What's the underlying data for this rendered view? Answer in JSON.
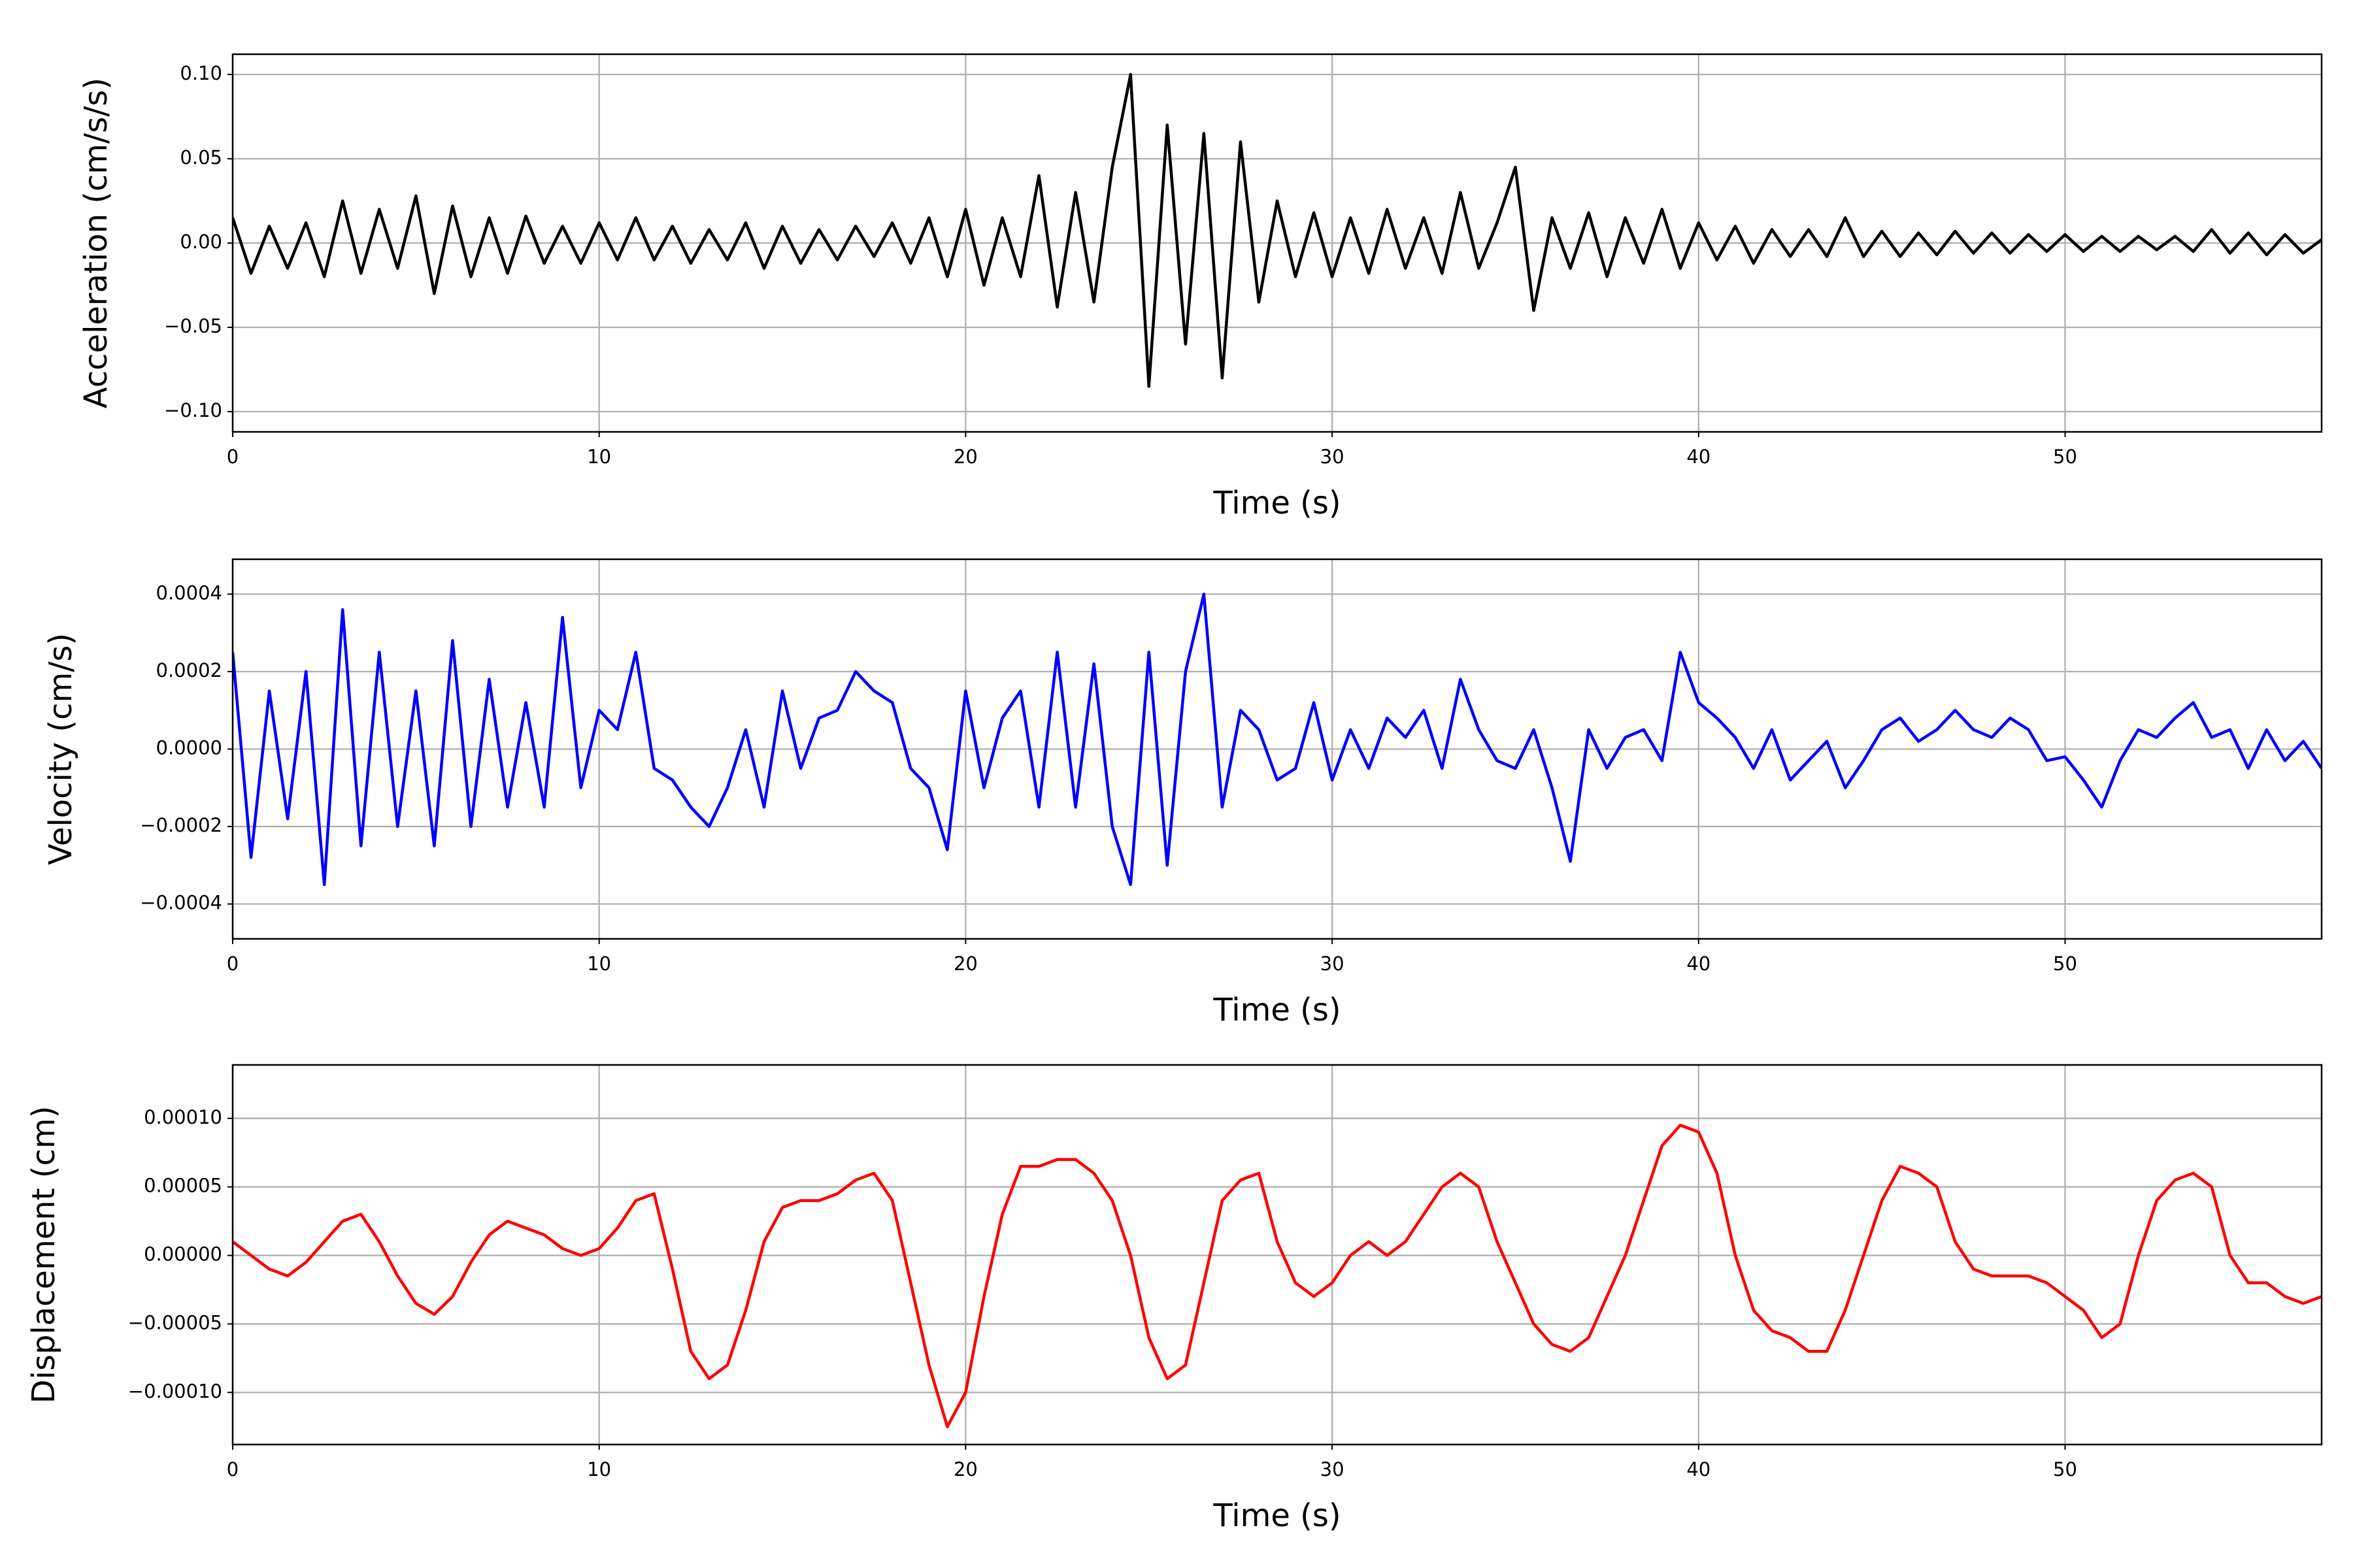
{
  "chart_data": [
    {
      "type": "line",
      "xlabel": "Time (s)",
      "ylabel": "Acceleration (cm/s/s)",
      "color": "#000000",
      "grid": true,
      "xlim": [
        0,
        57
      ],
      "xticks": [
        0,
        10,
        20,
        30,
        40,
        50
      ],
      "ylim": [
        -0.112,
        0.112
      ],
      "yticks": [
        {
          "value": -0.1,
          "label": "−0.10"
        },
        {
          "value": -0.05,
          "label": "−0.05"
        },
        {
          "value": 0,
          "label": "0.00"
        },
        0.05,
        {
          "value": 0.1,
          "label": "0.10"
        }
      ],
      "x": [
        0,
        0.5,
        1,
        1.5,
        2,
        2.5,
        3,
        3.5,
        4,
        4.5,
        5,
        5.5,
        6,
        6.5,
        7,
        7.5,
        8,
        8.5,
        9,
        9.5,
        10,
        10.5,
        11,
        11.5,
        12,
        12.5,
        13,
        13.5,
        14,
        14.5,
        15,
        15.5,
        16,
        16.5,
        17,
        17.5,
        18,
        18.5,
        19,
        19.5,
        20,
        20.5,
        21,
        21.5,
        22,
        22.5,
        23,
        23.5,
        24,
        24.5,
        25,
        25.5,
        26,
        26.5,
        27,
        27.5,
        28,
        28.5,
        29,
        29.5,
        30,
        30.5,
        31,
        31.5,
        32,
        32.5,
        33,
        33.5,
        34,
        34.5,
        35,
        35.5,
        36,
        36.5,
        37,
        37.5,
        38,
        38.5,
        39,
        39.5,
        40,
        40.5,
        41,
        41.5,
        42,
        42.5,
        43,
        43.5,
        44,
        44.5,
        45,
        45.5,
        46,
        46.5,
        47,
        47.5,
        48,
        48.5,
        49,
        49.5,
        50,
        50.5,
        51,
        51.5,
        52,
        52.5,
        53,
        53.5,
        54,
        54.5,
        55,
        55.5,
        56,
        56.5,
        57
      ],
      "values": [
        0.015,
        -0.018,
        0.01,
        -0.015,
        0.012,
        -0.02,
        0.025,
        -0.018,
        0.02,
        -0.015,
        0.028,
        -0.03,
        0.022,
        -0.02,
        0.015,
        -0.018,
        0.016,
        -0.012,
        0.01,
        -0.012,
        0.012,
        -0.01,
        0.015,
        -0.01,
        0.01,
        -0.012,
        0.008,
        -0.01,
        0.012,
        -0.015,
        0.01,
        -0.012,
        0.008,
        -0.01,
        0.01,
        -0.008,
        0.012,
        -0.012,
        0.015,
        -0.02,
        0.02,
        -0.025,
        0.015,
        -0.02,
        0.04,
        -0.038,
        0.03,
        -0.035,
        0.045,
        0.1,
        -0.085,
        0.07,
        -0.06,
        0.065,
        -0.08,
        0.06,
        -0.035,
        0.025,
        -0.02,
        0.018,
        -0.02,
        0.015,
        -0.018,
        0.02,
        -0.015,
        0.015,
        -0.018,
        0.03,
        -0.015,
        0.012,
        0.045,
        -0.04,
        0.015,
        -0.015,
        0.018,
        -0.02,
        0.015,
        -0.012,
        0.02,
        -0.015,
        0.012,
        -0.01,
        0.01,
        -0.012,
        0.008,
        -0.008,
        0.008,
        -0.008,
        0.015,
        -0.008,
        0.007,
        -0.008,
        0.006,
        -0.007,
        0.007,
        -0.006,
        0.006,
        -0.006,
        0.005,
        -0.005,
        0.005,
        -0.005,
        0.004,
        -0.005,
        0.004,
        -0.004,
        0.004,
        -0.005,
        0.008,
        -0.006,
        0.006,
        -0.007,
        0.005,
        -0.006,
        0.002
      ]
    },
    {
      "type": "line",
      "xlabel": "Time (s)",
      "ylabel": "Velocity (cm/s)",
      "color": "#0000ff",
      "grid": true,
      "xlim": [
        0,
        57
      ],
      "xticks": [
        0,
        10,
        20,
        30,
        40,
        50
      ],
      "ylim": [
        -0.00049,
        0.00049
      ],
      "yticks": [
        {
          "value": -0.0004,
          "label": "−0.0004"
        },
        {
          "value": -0.0002,
          "label": "−0.0002"
        },
        {
          "value": 0,
          "label": "0.0000"
        },
        0.0002,
        0.0004
      ],
      "x": [
        0,
        0.5,
        1,
        1.5,
        2,
        2.5,
        3,
        3.5,
        4,
        4.5,
        5,
        5.5,
        6,
        6.5,
        7,
        7.5,
        8,
        8.5,
        9,
        9.5,
        10,
        10.5,
        11,
        11.5,
        12,
        12.5,
        13,
        13.5,
        14,
        14.5,
        15,
        15.5,
        16,
        16.5,
        17,
        17.5,
        18,
        18.5,
        19,
        19.5,
        20,
        20.5,
        21,
        21.5,
        22,
        22.5,
        23,
        23.5,
        24,
        24.5,
        25,
        25.5,
        26,
        26.5,
        27,
        27.5,
        28,
        28.5,
        29,
        29.5,
        30,
        30.5,
        31,
        31.5,
        32,
        32.5,
        33,
        33.5,
        34,
        34.5,
        35,
        35.5,
        36,
        36.5,
        37,
        37.5,
        38,
        38.5,
        39,
        39.5,
        40,
        40.5,
        41,
        41.5,
        42,
        42.5,
        43,
        43.5,
        44,
        44.5,
        45,
        45.5,
        46,
        46.5,
        47,
        47.5,
        48,
        48.5,
        49,
        49.5,
        50,
        50.5,
        51,
        51.5,
        52,
        52.5,
        53,
        53.5,
        54,
        54.5,
        55,
        55.5,
        56,
        56.5,
        57
      ],
      "values": [
        0.00025,
        -0.00028,
        0.00015,
        -0.00018,
        0.0002,
        -0.00035,
        0.00036,
        -0.00025,
        0.00025,
        -0.0002,
        0.00015,
        -0.00025,
        0.00028,
        -0.0002,
        0.00018,
        -0.00015,
        0.00012,
        -0.00015,
        0.00034,
        -0.0001,
        0.0001,
        5e-05,
        0.00025,
        -5e-05,
        -8e-05,
        -0.00015,
        -0.0002,
        -0.0001,
        5e-05,
        -0.00015,
        0.00015,
        -5e-05,
        8e-05,
        0.0001,
        0.0002,
        0.00015,
        0.00012,
        -5e-05,
        -0.0001,
        -0.00026,
        0.00015,
        -0.0001,
        8e-05,
        0.00015,
        -0.00015,
        0.00025,
        -0.00015,
        0.00022,
        -0.0002,
        -0.00035,
        0.00025,
        -0.0003,
        0.0002,
        0.0004,
        -0.00015,
        0.0001,
        5e-05,
        -8e-05,
        -5e-05,
        0.00012,
        -8e-05,
        5e-05,
        -5e-05,
        8e-05,
        3e-05,
        0.0001,
        -5e-05,
        0.00018,
        5e-05,
        -3e-05,
        -5e-05,
        5e-05,
        -0.0001,
        -0.00029,
        5e-05,
        -5e-05,
        3e-05,
        5e-05,
        -3e-05,
        0.00025,
        0.00012,
        8e-05,
        3e-05,
        -5e-05,
        5e-05,
        -8e-05,
        -3e-05,
        2e-05,
        -0.0001,
        -3e-05,
        5e-05,
        8e-05,
        2e-05,
        5e-05,
        0.0001,
        5e-05,
        3e-05,
        8e-05,
        5e-05,
        -3e-05,
        -2e-05,
        -8e-05,
        -0.00015,
        -3e-05,
        5e-05,
        3e-05,
        8e-05,
        0.00012,
        3e-05,
        5e-05,
        -5e-05,
        5e-05,
        -3e-05,
        2e-05,
        -5e-05
      ]
    },
    {
      "type": "line",
      "xlabel": "Time (s)",
      "ylabel": "Displacement (cm)",
      "color": "#ff0000",
      "grid": true,
      "xlim": [
        0,
        57
      ],
      "xticks": [
        0,
        10,
        20,
        30,
        40,
        50
      ],
      "ylim": [
        -0.000138,
        0.000139
      ],
      "yticks": [
        {
          "value": -0.0001,
          "label": "−0.00010"
        },
        {
          "value": -5e-05,
          "label": "−0.00005"
        },
        {
          "value": 0,
          "label": "0.00000"
        },
        {
          "value": 5e-05,
          "label": "0.00005"
        },
        {
          "value": 0.0001,
          "label": "0.00010"
        }
      ],
      "x": [
        0,
        0.5,
        1,
        1.5,
        2,
        2.5,
        3,
        3.5,
        4,
        4.5,
        5,
        5.5,
        6,
        6.5,
        7,
        7.5,
        8,
        8.5,
        9,
        9.5,
        10,
        10.5,
        11,
        11.5,
        12,
        12.5,
        13,
        13.5,
        14,
        14.5,
        15,
        15.5,
        16,
        16.5,
        17,
        17.5,
        18,
        18.5,
        19,
        19.5,
        20,
        20.5,
        21,
        21.5,
        22,
        22.5,
        23,
        23.5,
        24,
        24.5,
        25,
        25.5,
        26,
        26.5,
        27,
        27.5,
        28,
        28.5,
        29,
        29.5,
        30,
        30.5,
        31,
        31.5,
        32,
        32.5,
        33,
        33.5,
        34,
        34.5,
        35,
        35.5,
        36,
        36.5,
        37,
        37.5,
        38,
        38.5,
        39,
        39.5,
        40,
        40.5,
        41,
        41.5,
        42,
        42.5,
        43,
        43.5,
        44,
        44.5,
        45,
        45.5,
        46,
        46.5,
        47,
        47.5,
        48,
        48.5,
        49,
        49.5,
        50,
        50.5,
        51,
        51.5,
        52,
        52.5,
        53,
        53.5,
        54,
        54.5,
        55,
        55.5,
        56,
        56.5,
        57
      ],
      "values": [
        1e-05,
        0,
        -1e-05,
        -1.5e-05,
        -5e-06,
        1e-05,
        2.5e-05,
        3e-05,
        1e-05,
        -1.5e-05,
        -3.5e-05,
        -4.3e-05,
        -3e-05,
        -5e-06,
        1.5e-05,
        2.5e-05,
        2e-05,
        1.5e-05,
        5e-06,
        0,
        5e-06,
        2e-05,
        4e-05,
        4.5e-05,
        -1e-05,
        -7e-05,
        -9e-05,
        -8e-05,
        -4e-05,
        1e-05,
        3.5e-05,
        4e-05,
        4e-05,
        4.5e-05,
        5.5e-05,
        6e-05,
        4e-05,
        -2e-05,
        -8e-05,
        -0.000125,
        -0.0001,
        -3e-05,
        3e-05,
        6.5e-05,
        6.5e-05,
        7e-05,
        7e-05,
        6e-05,
        4e-05,
        0,
        -6e-05,
        -9e-05,
        -8e-05,
        -2e-05,
        4e-05,
        5.5e-05,
        6e-05,
        1e-05,
        -2e-05,
        -3e-05,
        -2e-05,
        0,
        1e-05,
        0,
        1e-05,
        3e-05,
        5e-05,
        6e-05,
        5e-05,
        1e-05,
        -2e-05,
        -5e-05,
        -6.5e-05,
        -7e-05,
        -6e-05,
        -3e-05,
        0,
        4e-05,
        8e-05,
        9.5e-05,
        9e-05,
        6e-05,
        0,
        -4e-05,
        -5.5e-05,
        -6e-05,
        -7e-05,
        -7e-05,
        -4e-05,
        0,
        4e-05,
        6.5e-05,
        6e-05,
        5e-05,
        1e-05,
        -1e-05,
        -1.5e-05,
        -1.5e-05,
        -1.5e-05,
        -2e-05,
        -3e-05,
        -4e-05,
        -6e-05,
        -5e-05,
        0,
        4e-05,
        5.5e-05,
        6e-05,
        5e-05,
        0,
        -2e-05,
        -2e-05,
        -3e-05,
        -3.5e-05,
        -3e-05
      ]
    }
  ]
}
